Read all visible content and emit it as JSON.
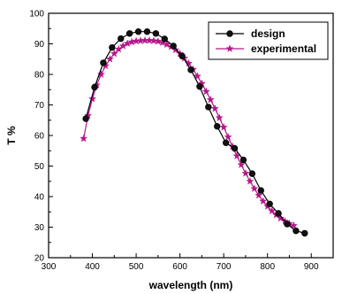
{
  "chart_data": {
    "type": "line",
    "xlabel": "wavelength (nm)",
    "ylabel": "T %",
    "xlim": [
      300,
      950
    ],
    "ylim": [
      20,
      100
    ],
    "xticks": [
      300,
      400,
      500,
      600,
      700,
      800,
      900
    ],
    "yticks": [
      20,
      30,
      40,
      50,
      60,
      70,
      80,
      90,
      100
    ],
    "grid": false,
    "legend_position": "top-right",
    "series": [
      {
        "name": "design",
        "color": "#000000",
        "marker": "circle",
        "x": [
          385,
          405,
          425,
          445,
          465,
          485,
          505,
          525,
          545,
          565,
          585,
          605,
          625,
          645,
          665,
          685,
          705,
          725,
          745,
          765,
          785,
          805,
          825,
          845,
          865,
          885
        ],
        "y": [
          65.5,
          75.8,
          83.8,
          88.8,
          91.7,
          93.4,
          94.0,
          94.0,
          93.4,
          91.6,
          89.3,
          86.0,
          81.5,
          76.0,
          69.3,
          63.0,
          57.6,
          55.8,
          52.0,
          47.5,
          42.0,
          37.6,
          34.5,
          31.0,
          28.8,
          28.0
        ]
      },
      {
        "name": "experimental",
        "color": "#b5178a",
        "marker": "star",
        "x": [
          380,
          390,
          400,
          410,
          420,
          430,
          440,
          450,
          460,
          470,
          480,
          490,
          500,
          510,
          520,
          530,
          540,
          550,
          560,
          570,
          580,
          590,
          600,
          610,
          620,
          630,
          640,
          650,
          660,
          670,
          680,
          690,
          700,
          710,
          720,
          730,
          740,
          750,
          760,
          770,
          780,
          790,
          800,
          810,
          820,
          830,
          840,
          850,
          860
        ],
        "y": [
          59.0,
          66.5,
          72.0,
          76.5,
          80.0,
          82.8,
          85.0,
          86.8,
          88.2,
          89.3,
          90.1,
          90.6,
          90.9,
          91.0,
          91.1,
          91.1,
          91.0,
          90.8,
          90.4,
          89.8,
          89.0,
          88.0,
          86.8,
          85.3,
          83.6,
          81.6,
          79.4,
          77.0,
          74.4,
          71.7,
          68.8,
          65.8,
          62.7,
          59.5,
          56.4,
          53.3,
          50.4,
          47.6,
          45.0,
          42.6,
          40.4,
          38.5,
          36.8,
          35.3,
          34.0,
          32.9,
          31.9,
          31.1,
          30.5
        ]
      }
    ]
  }
}
